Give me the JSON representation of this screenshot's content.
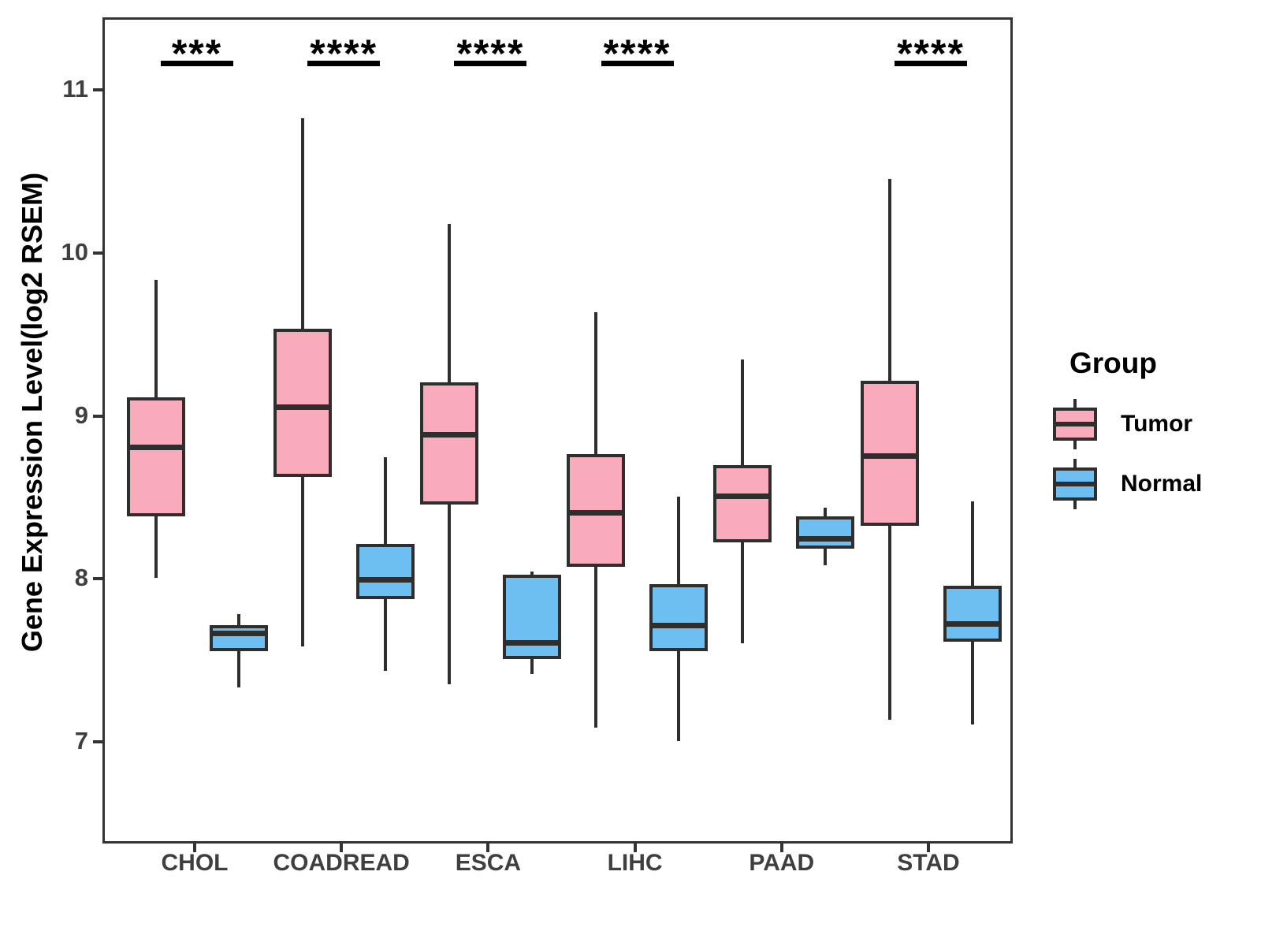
{
  "y_axis": {
    "label": "Gene Expression Level(log2 RSEM)",
    "tick_labels": [
      "11",
      "10",
      "9",
      "8",
      "7"
    ]
  },
  "x_axis": {
    "categories": [
      "CHOL",
      "COADREAD",
      "ESCA",
      "LIHC",
      "PAAD",
      "STAD"
    ]
  },
  "legend": {
    "title": "Group",
    "items": [
      {
        "label": "Tumor",
        "color": "#F9ABBC"
      },
      {
        "label": "Normal",
        "color": "#6DBFF2"
      }
    ]
  },
  "chart_data": {
    "type": "boxplot",
    "title": "",
    "xlabel": "",
    "ylabel": "Gene Expression Level(log2 RSEM)",
    "categories": [
      "CHOL",
      "COADREAD",
      "ESCA",
      "LIHC",
      "PAAD",
      "STAD"
    ],
    "y_ticks": [
      7,
      8,
      9,
      10,
      11
    ],
    "ylim": [
      6.38,
      11.45
    ],
    "grid": false,
    "legend_position": "right",
    "colors": {
      "tumor_fill": "#F9ABBC",
      "normal_fill": "#6DBFF2",
      "stroke": "#2e2e2e"
    },
    "series": [
      {
        "name": "Tumor",
        "boxes": [
          {
            "category": "CHOL",
            "whisker_low": 8.02,
            "q1": 8.4,
            "median": 8.82,
            "q3": 9.13,
            "whisker_high": 9.85
          },
          {
            "category": "COADREAD",
            "whisker_low": 7.6,
            "q1": 8.64,
            "median": 9.07,
            "q3": 9.55,
            "whisker_high": 10.84
          },
          {
            "category": "ESCA",
            "whisker_low": 7.37,
            "q1": 8.47,
            "median": 8.9,
            "q3": 9.22,
            "whisker_high": 10.19
          },
          {
            "category": "LIHC",
            "whisker_low": 7.1,
            "q1": 8.09,
            "median": 8.42,
            "q3": 8.78,
            "whisker_high": 9.65
          },
          {
            "category": "PAAD",
            "whisker_low": 7.62,
            "q1": 8.24,
            "median": 8.52,
            "q3": 8.71,
            "whisker_high": 9.36
          },
          {
            "category": "STAD",
            "whisker_low": 7.15,
            "q1": 8.34,
            "median": 8.77,
            "q3": 9.23,
            "whisker_high": 10.47
          }
        ]
      },
      {
        "name": "Normal",
        "boxes": [
          {
            "category": "CHOL",
            "whisker_low": 7.35,
            "q1": 7.57,
            "median": 7.68,
            "q3": 7.73,
            "whisker_high": 7.8
          },
          {
            "category": "COADREAD",
            "whisker_low": 7.45,
            "q1": 7.89,
            "median": 8.01,
            "q3": 8.23,
            "whisker_high": 8.76
          },
          {
            "category": "ESCA",
            "whisker_low": 7.43,
            "q1": 7.52,
            "median": 7.62,
            "q3": 8.04,
            "whisker_high": 8.06
          },
          {
            "category": "LIHC",
            "whisker_low": 7.02,
            "q1": 7.57,
            "median": 7.73,
            "q3": 7.98,
            "whisker_high": 8.52
          },
          {
            "category": "PAAD",
            "whisker_low": 8.1,
            "q1": 8.2,
            "median": 8.26,
            "q3": 8.4,
            "whisker_high": 8.45
          },
          {
            "category": "STAD",
            "whisker_low": 7.12,
            "q1": 7.63,
            "median": 7.74,
            "q3": 7.97,
            "whisker_high": 8.49
          }
        ]
      }
    ],
    "significance_stars": [
      "***",
      "****",
      "****",
      "****",
      null,
      "****"
    ]
  }
}
